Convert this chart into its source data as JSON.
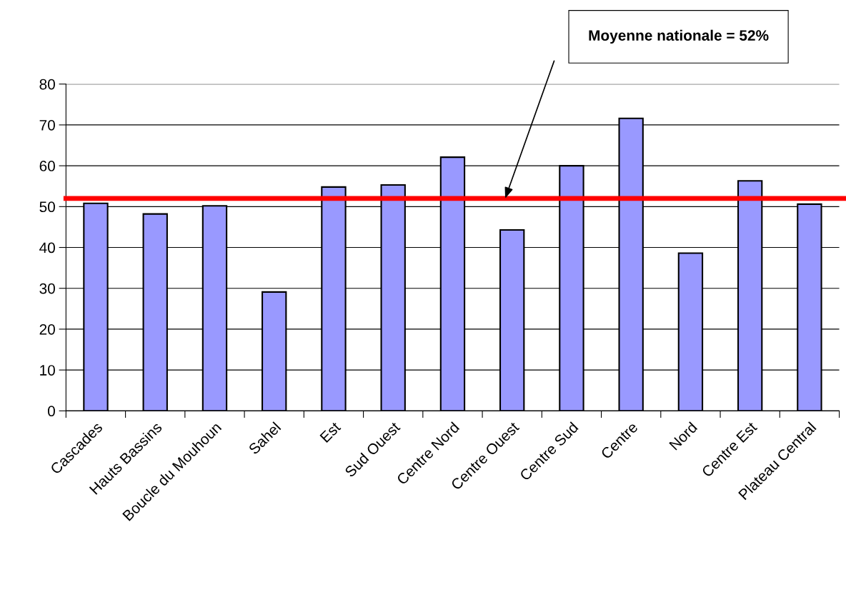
{
  "chart_data": {
    "type": "bar",
    "categories": [
      "Cascades",
      "Hauts Bassins",
      "Boucle du Mouhoun",
      "Sahel",
      "Est",
      "Sud Ouest",
      "Centre Nord",
      "Centre Ouest",
      "Centre Sud",
      "Centre",
      "Nord",
      "Centre Est",
      "Plateau Central"
    ],
    "values": [
      50.8,
      48.2,
      50.2,
      29.1,
      54.8,
      55.3,
      62.1,
      44.3,
      60.0,
      71.6,
      38.6,
      56.3,
      50.6
    ],
    "color": "#9999ff",
    "ylim": [
      0,
      80
    ],
    "yticks": [
      0,
      10,
      20,
      30,
      40,
      50,
      60,
      70,
      80
    ],
    "grid": "y",
    "ref_lines": [
      {
        "axis": "y",
        "value": 52,
        "color": "#ff0000"
      }
    ],
    "annotations": [
      "Moyenne nationale = 52%"
    ]
  }
}
